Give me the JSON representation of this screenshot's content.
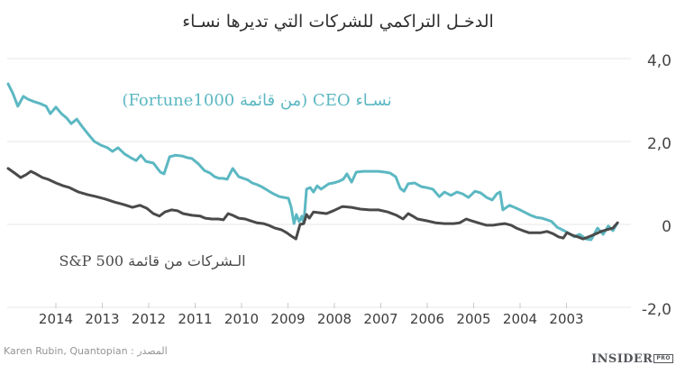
{
  "title": "الدخـل التراكمي للشركات التي تديرها نسـاء",
  "source_text": "المصدر : Karen Rubin, Quantopian",
  "branding": {
    "name": "INSIDER",
    "badge": "PRO"
  },
  "chart_data": {
    "type": "line",
    "title": "الدخـل التراكمي للشركات التي تديرها نسـاء",
    "grid": "horizontal",
    "legend_position": "inline-annotations",
    "x_axis": {
      "reversed": true,
      "range_years": [
        2001.9,
        2015.05
      ],
      "ticks": [
        {
          "year": 2014,
          "label": "2014"
        },
        {
          "year": 2013,
          "label": "2013"
        },
        {
          "year": 2012,
          "label": "2012"
        },
        {
          "year": 2011,
          "label": "2011"
        },
        {
          "year": 2010,
          "label": "2010"
        },
        {
          "year": 2009,
          "label": "2009"
        },
        {
          "year": 2008,
          "label": "2008"
        },
        {
          "year": 2007,
          "label": "2007"
        },
        {
          "year": 2006,
          "label": "2006"
        },
        {
          "year": 2005,
          "label": "2005"
        },
        {
          "year": 2004,
          "label": "2004"
        },
        {
          "year": 2003,
          "label": "2003"
        }
      ]
    },
    "y_axis": {
      "side": "right",
      "range": [
        -2.6,
        4.4
      ],
      "ticks": [
        {
          "value": 4,
          "label": "4,0"
        },
        {
          "value": 2,
          "label": "2,0"
        },
        {
          "value": 0,
          "label": "0"
        },
        {
          "value": -2,
          "label": "-2,0"
        }
      ]
    },
    "series": [
      {
        "name": "نسـاء CEO (من قائمة Fortune1000)",
        "color": "#5cb8c2",
        "points": [
          [
            2015.03,
            3.39
          ],
          [
            2014.93,
            3.17
          ],
          [
            2014.82,
            2.85
          ],
          [
            2014.7,
            3.09
          ],
          [
            2014.6,
            3.02
          ],
          [
            2014.47,
            2.96
          ],
          [
            2014.33,
            2.91
          ],
          [
            2014.21,
            2.85
          ],
          [
            2014.12,
            2.67
          ],
          [
            2014.0,
            2.83
          ],
          [
            2013.88,
            2.67
          ],
          [
            2013.77,
            2.57
          ],
          [
            2013.67,
            2.43
          ],
          [
            2013.55,
            2.54
          ],
          [
            2013.44,
            2.37
          ],
          [
            2013.3,
            2.17
          ],
          [
            2013.17,
            2.0
          ],
          [
            2013.03,
            1.91
          ],
          [
            2012.89,
            1.85
          ],
          [
            2012.78,
            1.76
          ],
          [
            2012.66,
            1.85
          ],
          [
            2012.52,
            1.7
          ],
          [
            2012.39,
            1.61
          ],
          [
            2012.27,
            1.54
          ],
          [
            2012.17,
            1.67
          ],
          [
            2012.06,
            1.52
          ],
          [
            2011.9,
            1.48
          ],
          [
            2011.75,
            1.26
          ],
          [
            2011.67,
            1.22
          ],
          [
            2011.55,
            1.63
          ],
          [
            2011.42,
            1.67
          ],
          [
            2011.28,
            1.65
          ],
          [
            2011.17,
            1.61
          ],
          [
            2011.07,
            1.59
          ],
          [
            2010.93,
            1.46
          ],
          [
            2010.8,
            1.3
          ],
          [
            2010.68,
            1.24
          ],
          [
            2010.58,
            1.15
          ],
          [
            2010.48,
            1.11
          ],
          [
            2010.39,
            1.11
          ],
          [
            2010.31,
            1.09
          ],
          [
            2010.19,
            1.35
          ],
          [
            2010.06,
            1.15
          ],
          [
            2009.96,
            1.11
          ],
          [
            2009.86,
            1.07
          ],
          [
            2009.77,
            1.0
          ],
          [
            2009.67,
            0.96
          ],
          [
            2009.57,
            0.91
          ],
          [
            2009.48,
            0.85
          ],
          [
            2009.38,
            0.78
          ],
          [
            2009.28,
            0.72
          ],
          [
            2009.18,
            0.67
          ],
          [
            2009.09,
            0.65
          ],
          [
            2008.99,
            0.63
          ],
          [
            2008.93,
            0.41
          ],
          [
            2008.87,
            0.02
          ],
          [
            2008.82,
            0.24
          ],
          [
            2008.76,
            0.07
          ],
          [
            2008.7,
            0.2
          ],
          [
            2008.66,
            0.02
          ],
          [
            2008.6,
            0.85
          ],
          [
            2008.52,
            0.89
          ],
          [
            2008.45,
            0.78
          ],
          [
            2008.37,
            0.93
          ],
          [
            2008.29,
            0.85
          ],
          [
            2008.21,
            0.91
          ],
          [
            2008.12,
            0.98
          ],
          [
            2008.02,
            1.0
          ],
          [
            2007.9,
            1.04
          ],
          [
            2007.81,
            1.09
          ],
          [
            2007.73,
            1.22
          ],
          [
            2007.63,
            1.02
          ],
          [
            2007.53,
            1.26
          ],
          [
            2007.38,
            1.28
          ],
          [
            2007.2,
            1.28
          ],
          [
            2007.05,
            1.28
          ],
          [
            2006.91,
            1.26
          ],
          [
            2006.8,
            1.24
          ],
          [
            2006.68,
            1.15
          ],
          [
            2006.58,
            0.87
          ],
          [
            2006.5,
            0.8
          ],
          [
            2006.41,
            0.98
          ],
          [
            2006.27,
            1.0
          ],
          [
            2006.13,
            0.91
          ],
          [
            2006.02,
            0.89
          ],
          [
            2005.88,
            0.85
          ],
          [
            2005.74,
            0.67
          ],
          [
            2005.63,
            0.78
          ],
          [
            2005.49,
            0.7
          ],
          [
            2005.36,
            0.78
          ],
          [
            2005.24,
            0.74
          ],
          [
            2005.11,
            0.65
          ],
          [
            2004.97,
            0.8
          ],
          [
            2004.85,
            0.76
          ],
          [
            2004.72,
            0.65
          ],
          [
            2004.6,
            0.59
          ],
          [
            2004.5,
            0.74
          ],
          [
            2004.43,
            0.78
          ],
          [
            2004.37,
            0.35
          ],
          [
            2004.23,
            0.46
          ],
          [
            2004.12,
            0.41
          ],
          [
            2004.0,
            0.35
          ],
          [
            2003.88,
            0.28
          ],
          [
            2003.77,
            0.22
          ],
          [
            2003.65,
            0.17
          ],
          [
            2003.53,
            0.15
          ],
          [
            2003.42,
            0.11
          ],
          [
            2003.32,
            0.07
          ],
          [
            2003.2,
            -0.07
          ],
          [
            2003.09,
            -0.13
          ],
          [
            2002.97,
            -0.2
          ],
          [
            2002.83,
            -0.3
          ],
          [
            2002.72,
            -0.24
          ],
          [
            2002.58,
            -0.35
          ],
          [
            2002.47,
            -0.37
          ],
          [
            2002.33,
            -0.09
          ],
          [
            2002.21,
            -0.24
          ],
          [
            2002.1,
            -0.04
          ],
          [
            2002.0,
            -0.15
          ],
          [
            2001.9,
            0.04
          ]
        ]
      },
      {
        "name": "الـشركات من قائمة S&P 500",
        "color": "#4a4a4a",
        "points": [
          [
            2015.03,
            1.35
          ],
          [
            2014.89,
            1.24
          ],
          [
            2014.76,
            1.13
          ],
          [
            2014.64,
            1.2
          ],
          [
            2014.54,
            1.28
          ],
          [
            2014.43,
            1.22
          ],
          [
            2014.29,
            1.13
          ],
          [
            2014.17,
            1.09
          ],
          [
            2014.0,
            1.0
          ],
          [
            2013.84,
            0.93
          ],
          [
            2013.71,
            0.89
          ],
          [
            2013.51,
            0.78
          ],
          [
            2013.32,
            0.72
          ],
          [
            2013.13,
            0.67
          ],
          [
            2012.93,
            0.61
          ],
          [
            2012.74,
            0.54
          ],
          [
            2012.54,
            0.48
          ],
          [
            2012.35,
            0.41
          ],
          [
            2012.19,
            0.46
          ],
          [
            2012.04,
            0.39
          ],
          [
            2011.9,
            0.26
          ],
          [
            2011.77,
            0.2
          ],
          [
            2011.65,
            0.3
          ],
          [
            2011.51,
            0.35
          ],
          [
            2011.38,
            0.33
          ],
          [
            2011.26,
            0.26
          ],
          [
            2011.07,
            0.22
          ],
          [
            2010.89,
            0.2
          ],
          [
            2010.78,
            0.15
          ],
          [
            2010.64,
            0.13
          ],
          [
            2010.5,
            0.13
          ],
          [
            2010.39,
            0.11
          ],
          [
            2010.29,
            0.26
          ],
          [
            2010.19,
            0.22
          ],
          [
            2010.06,
            0.15
          ],
          [
            2009.92,
            0.13
          ],
          [
            2009.81,
            0.09
          ],
          [
            2009.67,
            0.04
          ],
          [
            2009.53,
            0.02
          ],
          [
            2009.42,
            -0.02
          ],
          [
            2009.28,
            -0.09
          ],
          [
            2009.14,
            -0.13
          ],
          [
            2009.03,
            -0.2
          ],
          [
            2008.93,
            -0.28
          ],
          [
            2008.83,
            -0.35
          ],
          [
            2008.74,
            0.0
          ],
          [
            2008.66,
            0.02
          ],
          [
            2008.6,
            0.24
          ],
          [
            2008.54,
            0.15
          ],
          [
            2008.45,
            0.3
          ],
          [
            2008.31,
            0.28
          ],
          [
            2008.17,
            0.26
          ],
          [
            2008.02,
            0.33
          ],
          [
            2007.83,
            0.43
          ],
          [
            2007.63,
            0.41
          ],
          [
            2007.44,
            0.37
          ],
          [
            2007.24,
            0.35
          ],
          [
            2007.05,
            0.35
          ],
          [
            2006.85,
            0.3
          ],
          [
            2006.66,
            0.22
          ],
          [
            2006.52,
            0.13
          ],
          [
            2006.41,
            0.26
          ],
          [
            2006.31,
            0.2
          ],
          [
            2006.21,
            0.13
          ],
          [
            2006.02,
            0.09
          ],
          [
            2005.82,
            0.04
          ],
          [
            2005.63,
            0.02
          ],
          [
            2005.43,
            0.02
          ],
          [
            2005.3,
            0.04
          ],
          [
            2005.16,
            0.13
          ],
          [
            2005.05,
            0.09
          ],
          [
            2004.85,
            0.02
          ],
          [
            2004.72,
            -0.02
          ],
          [
            2004.58,
            -0.02
          ],
          [
            2004.47,
            0.0
          ],
          [
            2004.33,
            0.02
          ],
          [
            2004.19,
            -0.02
          ],
          [
            2004.08,
            -0.09
          ],
          [
            2003.94,
            -0.15
          ],
          [
            2003.81,
            -0.2
          ],
          [
            2003.67,
            -0.2
          ],
          [
            2003.55,
            -0.2
          ],
          [
            2003.42,
            -0.17
          ],
          [
            2003.3,
            -0.22
          ],
          [
            2003.17,
            -0.3
          ],
          [
            2003.07,
            -0.33
          ],
          [
            2002.99,
            -0.2
          ],
          [
            2002.87,
            -0.26
          ],
          [
            2002.76,
            -0.3
          ],
          [
            2002.64,
            -0.35
          ],
          [
            2002.52,
            -0.3
          ],
          [
            2002.39,
            -0.24
          ],
          [
            2002.25,
            -0.17
          ],
          [
            2002.14,
            -0.13
          ],
          [
            2002.0,
            -0.09
          ],
          [
            2001.9,
            0.04
          ]
        ]
      }
    ]
  }
}
